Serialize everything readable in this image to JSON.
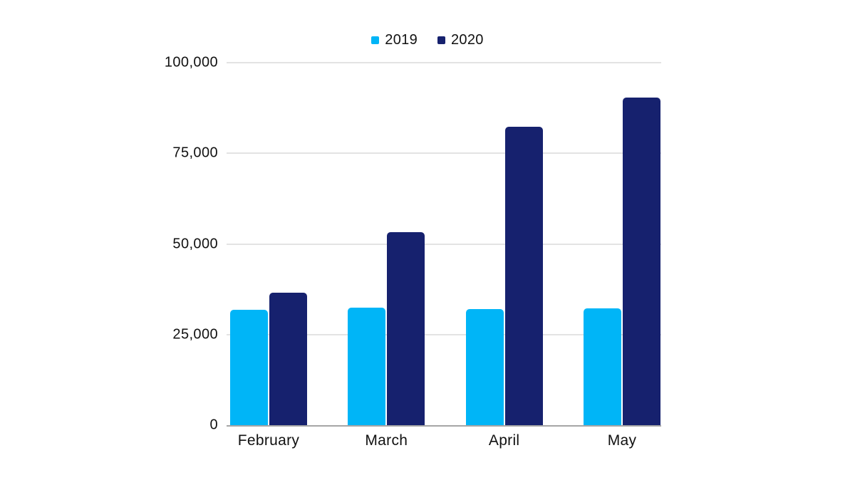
{
  "chart_data": {
    "type": "bar",
    "title": "",
    "xlabel": "",
    "ylabel": "",
    "categories": [
      "February",
      "March",
      "April",
      "May"
    ],
    "series": [
      {
        "name": "2019",
        "color": "#00b5f7",
        "values": [
          31800,
          32500,
          32100,
          32300
        ]
      },
      {
        "name": "2020",
        "color": "#16216e",
        "values": [
          36600,
          53300,
          82300,
          90400
        ]
      }
    ],
    "ylim": [
      0,
      100000
    ],
    "yticks": [
      0,
      25000,
      50000,
      75000,
      100000
    ],
    "ytick_labels": [
      "0",
      "25,000",
      "50,000",
      "75,000",
      "100,000"
    ],
    "grid": true,
    "legend_position": "top-center",
    "colors": {
      "gridline": "#e3e3e3",
      "axis_line": "#a6a6a6",
      "text": "#111111",
      "background": "#ffffff"
    }
  }
}
